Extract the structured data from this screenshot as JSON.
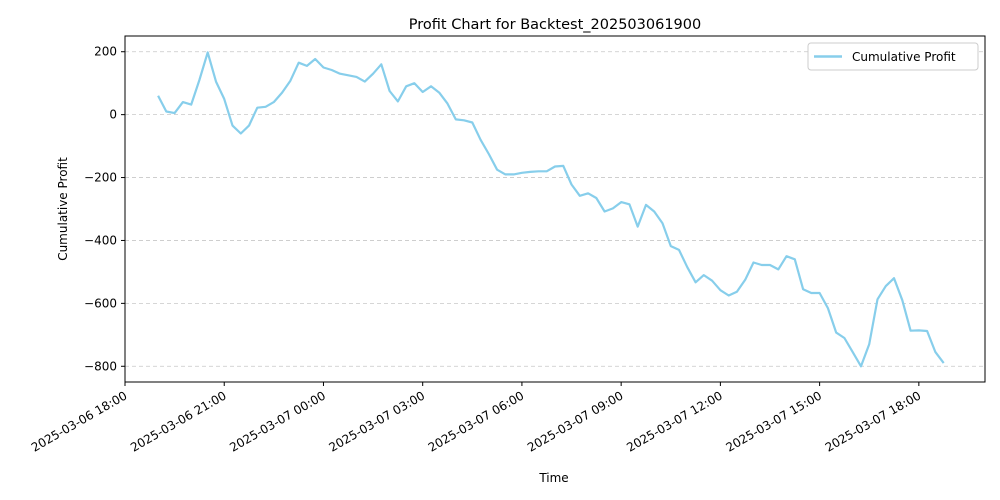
{
  "chart_data": {
    "type": "line",
    "title": "Profit Chart for Backtest_202503061900",
    "xlabel": "Time",
    "ylabel": "Cumulative Profit",
    "grid": "y-dashed",
    "legend_position": "top-right",
    "line_color": "#87ceeb",
    "xlim": [
      "2025-03-06 18:00",
      "2025-03-07 20:00"
    ],
    "ylim": [
      -850,
      250
    ],
    "x_ticks": [
      "2025-03-06 18:00",
      "2025-03-06 21:00",
      "2025-03-07 00:00",
      "2025-03-07 03:00",
      "2025-03-07 06:00",
      "2025-03-07 09:00",
      "2025-03-07 12:00",
      "2025-03-07 15:00",
      "2025-03-07 18:00"
    ],
    "y_ticks": [
      200,
      0,
      -200,
      -400,
      -600,
      -800
    ],
    "series": [
      {
        "name": "Cumulative Profit",
        "x": [
          "2025-03-06 19:00",
          "2025-03-06 19:15",
          "2025-03-06 19:30",
          "2025-03-06 19:45",
          "2025-03-06 20:00",
          "2025-03-06 20:15",
          "2025-03-06 20:30",
          "2025-03-06 20:45",
          "2025-03-06 21:00",
          "2025-03-06 21:15",
          "2025-03-06 21:30",
          "2025-03-06 21:45",
          "2025-03-06 22:00",
          "2025-03-06 22:15",
          "2025-03-06 22:30",
          "2025-03-06 22:45",
          "2025-03-06 23:00",
          "2025-03-06 23:15",
          "2025-03-06 23:30",
          "2025-03-06 23:45",
          "2025-03-07 00:00",
          "2025-03-07 00:15",
          "2025-03-07 00:30",
          "2025-03-07 00:45",
          "2025-03-07 01:00",
          "2025-03-07 01:15",
          "2025-03-07 01:30",
          "2025-03-07 01:45",
          "2025-03-07 02:00",
          "2025-03-07 02:15",
          "2025-03-07 02:30",
          "2025-03-07 02:45",
          "2025-03-07 03:00",
          "2025-03-07 03:15",
          "2025-03-07 03:30",
          "2025-03-07 03:45",
          "2025-03-07 04:00",
          "2025-03-07 04:15",
          "2025-03-07 04:30",
          "2025-03-07 04:45",
          "2025-03-07 05:00",
          "2025-03-07 05:15",
          "2025-03-07 05:30",
          "2025-03-07 05:45",
          "2025-03-07 06:00",
          "2025-03-07 06:15",
          "2025-03-07 06:30",
          "2025-03-07 06:45",
          "2025-03-07 07:00",
          "2025-03-07 07:15",
          "2025-03-07 07:30",
          "2025-03-07 07:45",
          "2025-03-07 08:00",
          "2025-03-07 08:15",
          "2025-03-07 08:30",
          "2025-03-07 08:45",
          "2025-03-07 09:00",
          "2025-03-07 09:15",
          "2025-03-07 09:30",
          "2025-03-07 09:45",
          "2025-03-07 10:00",
          "2025-03-07 10:15",
          "2025-03-07 10:30",
          "2025-03-07 10:45",
          "2025-03-07 11:00",
          "2025-03-07 11:15",
          "2025-03-07 11:30",
          "2025-03-07 11:45",
          "2025-03-07 12:00",
          "2025-03-07 12:15",
          "2025-03-07 12:30",
          "2025-03-07 12:45",
          "2025-03-07 13:00",
          "2025-03-07 13:15",
          "2025-03-07 13:30",
          "2025-03-07 13:45",
          "2025-03-07 14:00",
          "2025-03-07 14:15",
          "2025-03-07 14:30",
          "2025-03-07 14:45",
          "2025-03-07 15:00",
          "2025-03-07 15:15",
          "2025-03-07 15:30",
          "2025-03-07 15:45",
          "2025-03-07 16:00",
          "2025-03-07 16:15",
          "2025-03-07 16:30",
          "2025-03-07 16:45",
          "2025-03-07 17:00",
          "2025-03-07 17:15",
          "2025-03-07 17:30",
          "2025-03-07 17:45",
          "2025-03-07 18:00",
          "2025-03-07 18:15",
          "2025-03-07 18:30",
          "2025-03-07 18:45"
        ],
        "values": [
          60,
          10,
          5,
          40,
          32,
          110,
          198,
          105,
          50,
          -35,
          -60,
          -35,
          22,
          25,
          40,
          70,
          108,
          165,
          155,
          177,
          150,
          142,
          130,
          125,
          120,
          105,
          130,
          160,
          75,
          42,
          90,
          100,
          72,
          90,
          70,
          35,
          -15,
          -18,
          -25,
          -80,
          -125,
          -175,
          -190,
          -190,
          -185,
          -182,
          -180,
          -180,
          -165,
          -163,
          -222,
          -258,
          -250,
          -265,
          -308,
          -298,
          -278,
          -285,
          -356,
          -287,
          -308,
          -345,
          -418,
          -430,
          -485,
          -533,
          -510,
          -528,
          -558,
          -575,
          -563,
          -525,
          -470,
          -478,
          -478,
          -492,
          -450,
          -460,
          -555,
          -567,
          -567,
          -615,
          -693,
          -710,
          -755,
          -800,
          -730,
          -587,
          -545,
          -520,
          -590,
          -687,
          -686,
          -688,
          -755,
          -790
        ]
      }
    ]
  }
}
